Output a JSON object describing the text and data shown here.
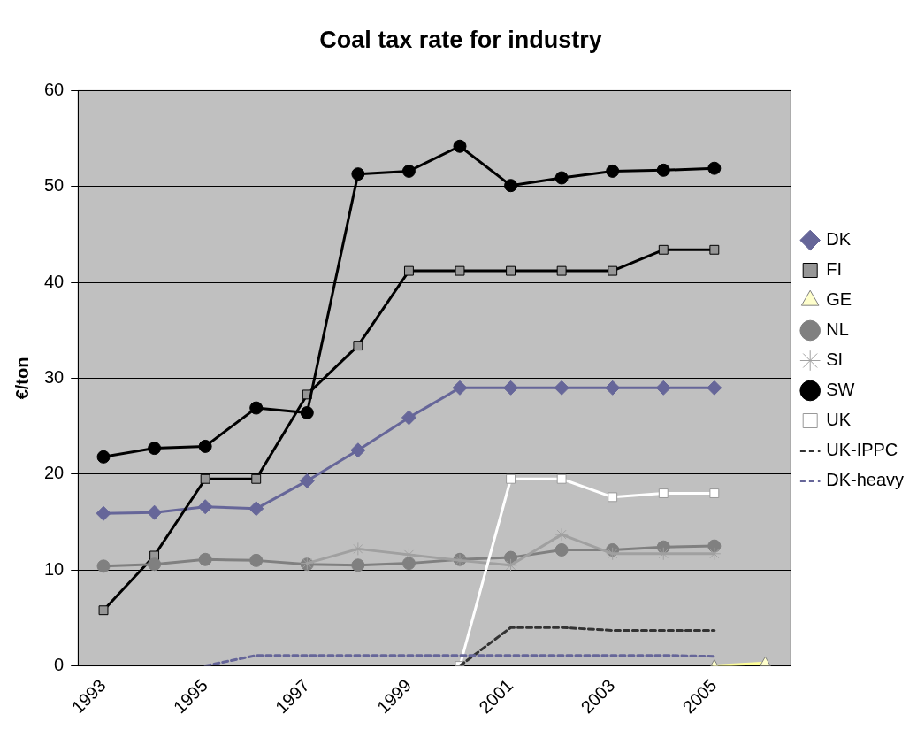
{
  "chart_data": {
    "type": "line",
    "title": "Coal tax rate for industry",
    "ylabel": "€/ton",
    "categories": [
      "1993",
      null,
      "1995",
      null,
      "1997",
      null,
      "1999",
      null,
      "2001",
      null,
      "2003",
      null,
      "2005",
      null
    ],
    "ylim": [
      0,
      60
    ],
    "yticks": [
      0,
      10,
      20,
      30,
      40,
      50,
      60
    ],
    "grid": "y",
    "legend": "right",
    "series": [
      {
        "name": "DK",
        "color": "#666699",
        "marker": "diamond",
        "values": [
          15.9,
          16.0,
          16.6,
          16.4,
          19.3,
          22.5,
          25.9,
          29.0,
          29.0,
          29.0,
          29.0,
          29.0,
          29.0,
          null
        ]
      },
      {
        "name": "FI",
        "color": "#000000",
        "marker": "square",
        "values": [
          5.8,
          11.5,
          19.5,
          19.5,
          28.3,
          33.4,
          41.2,
          41.2,
          41.2,
          41.2,
          41.2,
          43.4,
          43.4,
          null
        ]
      },
      {
        "name": "GE",
        "color": "#ffff99",
        "marker": "triangle",
        "values": [
          null,
          null,
          null,
          null,
          null,
          null,
          null,
          null,
          null,
          null,
          null,
          null,
          0,
          0.3
        ]
      },
      {
        "name": "NL",
        "color": "#808080",
        "marker": "circle",
        "values": [
          10.4,
          10.6,
          11.1,
          11.0,
          10.6,
          10.5,
          10.7,
          11.1,
          11.3,
          12.1,
          12.1,
          12.4,
          12.5,
          null
        ]
      },
      {
        "name": "SI",
        "color": "#a0a0a0",
        "marker": "cross",
        "values": [
          null,
          null,
          null,
          null,
          10.7,
          12.2,
          11.6,
          11.0,
          10.5,
          13.7,
          11.7,
          11.7,
          11.7,
          null
        ]
      },
      {
        "name": "SW",
        "color": "#000000",
        "marker": "circle",
        "values": [
          21.8,
          22.7,
          22.9,
          26.9,
          26.4,
          51.3,
          51.6,
          54.2,
          50.1,
          50.9,
          51.6,
          51.7,
          51.9,
          null
        ]
      },
      {
        "name": "UK",
        "color": "#ffffff",
        "marker": "square",
        "values": [
          null,
          null,
          null,
          null,
          null,
          null,
          null,
          0,
          19.5,
          19.5,
          17.6,
          18.0,
          18.0,
          null
        ]
      },
      {
        "name": "UK-IPPC",
        "color": "#333333",
        "marker": "none",
        "line_style": "dashed",
        "values": [
          null,
          null,
          null,
          null,
          null,
          null,
          null,
          0,
          4.0,
          4.0,
          3.7,
          3.7,
          3.7,
          null
        ]
      },
      {
        "name": "DK-heavy",
        "color": "#666699",
        "marker": "none",
        "line_style": "dashed",
        "values": [
          null,
          null,
          0,
          1.1,
          1.1,
          1.1,
          1.1,
          1.1,
          1.1,
          1.1,
          1.1,
          1.1,
          1.0,
          null
        ]
      }
    ]
  }
}
